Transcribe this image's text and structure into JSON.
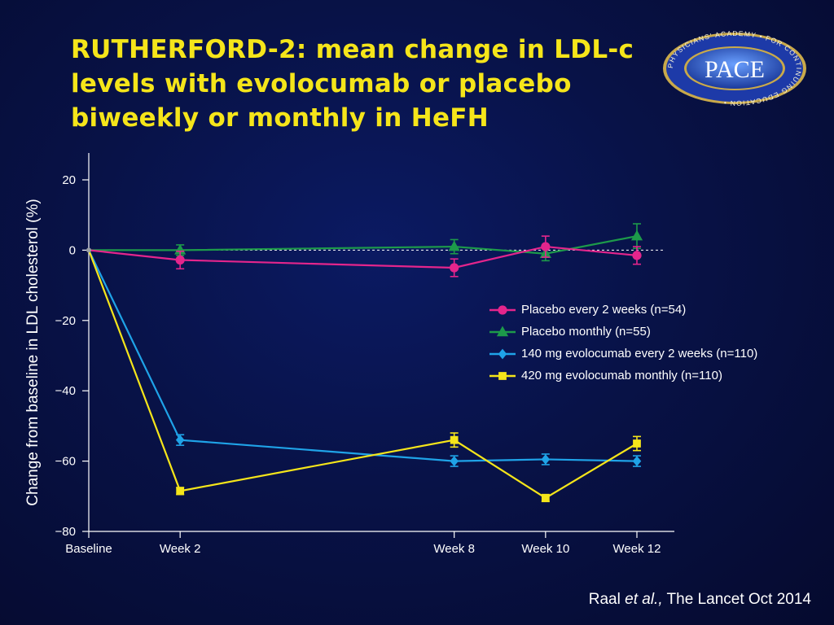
{
  "slide": {
    "title": "RUTHERFORD-2: mean change in LDL-c levels with evolocumab or placebo biweekly or monthly in HeFH",
    "logo": {
      "text": "PACE",
      "ring_text": "PHYSICIANS' ACADEMY • FOR CONTINUING EDUCATION •"
    },
    "citation": {
      "author": "Raal ",
      "etal": "et al.,",
      "source": " The Lancet Oct 2014"
    }
  },
  "chart_data": {
    "type": "line",
    "ylabel": "Change from baseline in LDL cholesterol (%)",
    "xlabel": "",
    "categories": [
      "Baseline",
      "Week 2",
      "Week 8",
      "Week 10",
      "Week 12"
    ],
    "x": [
      0,
      2,
      8,
      10,
      12
    ],
    "ylim": [
      -80,
      20
    ],
    "yticks": [
      20,
      0,
      -20,
      -40,
      -60,
      -80
    ],
    "ytick_labels": [
      "20",
      "0",
      "−20",
      "−40",
      "−60",
      "−80"
    ],
    "reference_line": 0,
    "legend_position": "right-center",
    "series": [
      {
        "name": "Placebo every 2 weeks (n=54)",
        "color": "#e4258c",
        "marker": "circle",
        "values": [
          0,
          -2.8,
          -5,
          1,
          -1.5
        ],
        "err": [
          0,
          2.5,
          2.5,
          3,
          2.5
        ]
      },
      {
        "name": "Placebo monthly (n=55)",
        "color": "#1d9a4a",
        "marker": "triangle",
        "values": [
          0,
          0,
          1,
          -1,
          4
        ],
        "err": [
          0,
          1.5,
          2,
          2,
          3.5
        ]
      },
      {
        "name": "140 mg evolocumab every 2 weeks (n=110)",
        "color": "#1fa3e8",
        "marker": "diamond",
        "values": [
          0,
          -54,
          -60,
          -59.5,
          -60
        ],
        "err": [
          0,
          1.5,
          1.5,
          1.5,
          1.5
        ]
      },
      {
        "name": "420 mg evolocumab monthly (n=110)",
        "color": "#f5e51a",
        "marker": "square",
        "values": [
          0,
          -68.5,
          -54,
          -70.5,
          -55
        ],
        "err": [
          0,
          1,
          2,
          1,
          2
        ]
      }
    ]
  }
}
